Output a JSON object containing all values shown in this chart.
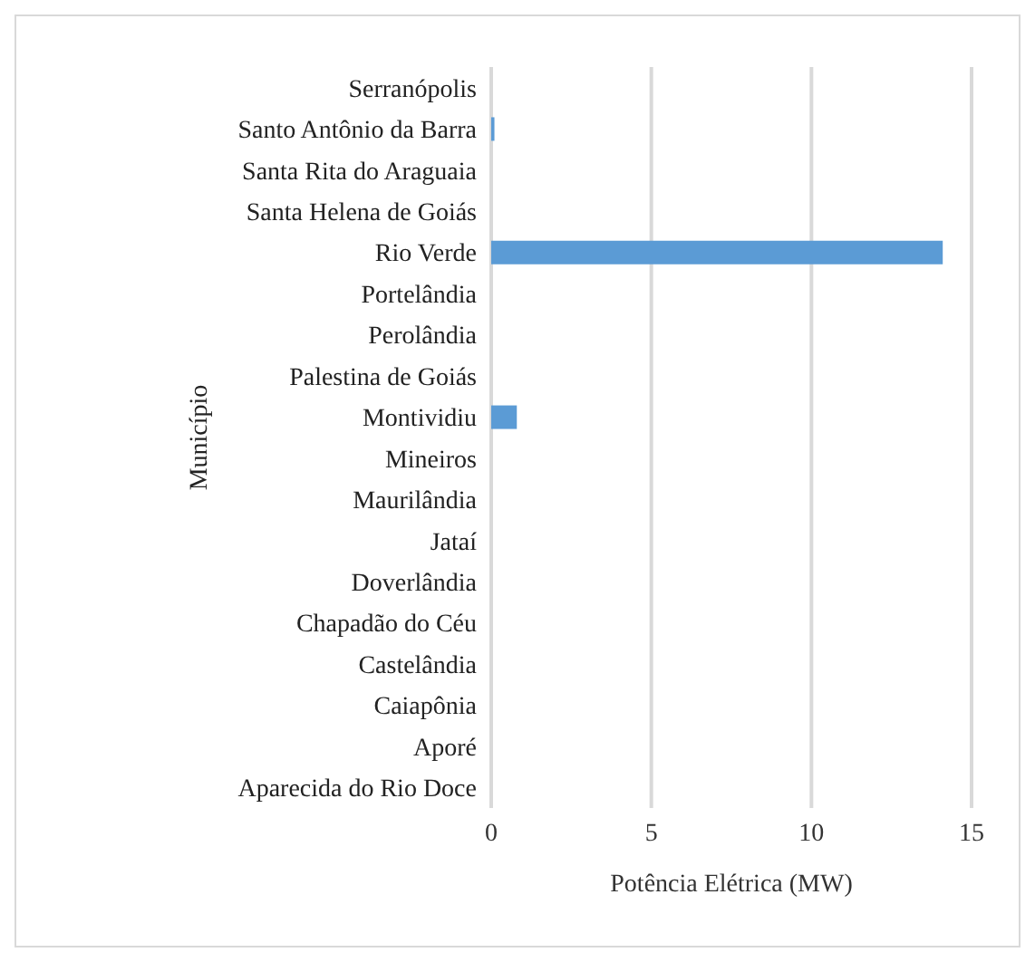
{
  "chart_data": {
    "type": "bar",
    "orientation": "horizontal",
    "xlabel": "Potência Elétrica (MW)",
    "ylabel": "Município",
    "categories": [
      "Serranópolis",
      "Santo Antônio da Barra",
      "Santa Rita do Araguaia",
      "Santa Helena de Goiás",
      "Rio Verde",
      "Portelândia",
      "Perolândia",
      "Palestina de Goiás",
      "Montividiu",
      "Mineiros",
      "Maurilândia",
      "Jataí",
      "Doverlândia",
      "Chapadão do Céu",
      "Castelândia",
      "Caiapônia",
      "Aporé",
      "Aparecida do Rio Doce"
    ],
    "values": [
      0,
      0.1,
      0,
      0,
      14.1,
      0,
      0,
      0,
      0.8,
      0,
      0,
      0,
      0,
      0,
      0,
      0,
      0,
      0
    ],
    "color": "#5b9bd5",
    "xlim": [
      0,
      15
    ],
    "xticks": [
      0,
      5,
      10,
      15
    ],
    "grid": "x",
    "legend": false
  }
}
